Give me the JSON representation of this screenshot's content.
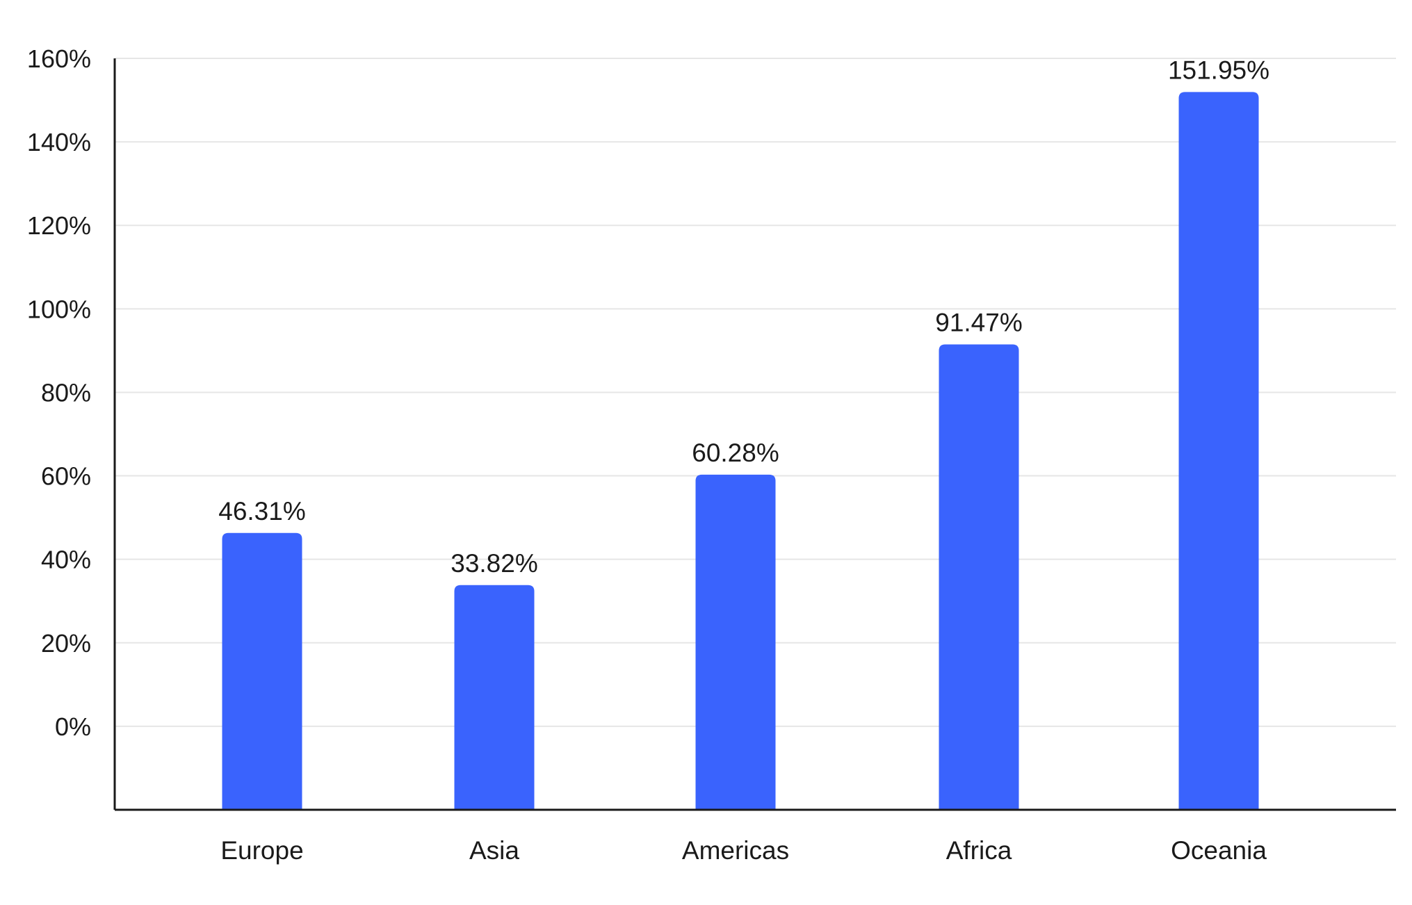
{
  "chart_data": {
    "type": "bar",
    "title": "",
    "xlabel": "",
    "ylabel": "",
    "categories": [
      "Europe",
      "Asia",
      "Americas",
      "Africa",
      "Oceania"
    ],
    "values": [
      46.31,
      33.82,
      60.28,
      91.47,
      151.95
    ],
    "value_labels": [
      "46.31%",
      "33.82%",
      "60.28%",
      "91.47%",
      "151.95%"
    ],
    "yticks": [
      0,
      20,
      40,
      60,
      80,
      100,
      120,
      140,
      160
    ],
    "ytick_labels": [
      "0%",
      "20%",
      "40%",
      "60%",
      "80%",
      "100%",
      "120%",
      "140%",
      "160%"
    ],
    "ylim": [
      -20,
      160
    ],
    "grid": true,
    "legend": "none",
    "bar_color": "#3a63fd"
  }
}
